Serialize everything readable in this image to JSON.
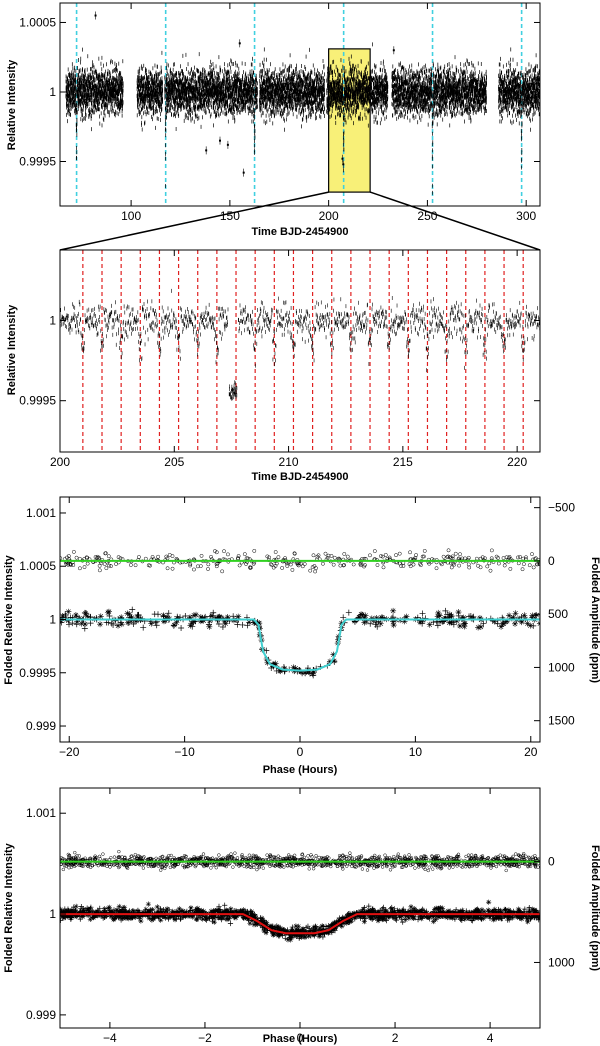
{
  "figure": {
    "panel_a": {
      "xlabel": "Time BJD-2454900",
      "ylabel": "Relative Intensity"
    },
    "panel_b": {
      "xlabel": "Time BJD-2454900",
      "ylabel": "Relative Intensity"
    },
    "panel_c": {
      "xlabel": "Phase (Hours)",
      "ylabel": "Folded Relative Intensity",
      "ylabel_right": "Folded Amplitude (ppm)"
    },
    "panel_d": {
      "xlabel": "Phase (Hours)",
      "ylabel": "Folded Relative Intensity",
      "ylabel_right": "Folded Amplitude (ppm)"
    }
  },
  "colors": {
    "data_points": "#000000",
    "transit_markers_a": "#40d0e0",
    "transit_markers_b": "#e02020",
    "zoom_box": "#f8f078",
    "fit_c": "#40d0d0",
    "fit_d": "#e01010",
    "residual_fit": "#30d020"
  },
  "chart_data": [
    {
      "panel": "a",
      "type": "scatter",
      "xlabel": "Time BJD-2454900",
      "ylabel": "Relative Intensity",
      "xlim": [
        64,
        307
      ],
      "ylim": [
        0.99918,
        1.00064
      ],
      "xticks": [
        100,
        150,
        200,
        250,
        300
      ],
      "xtick_labels": [
        "100",
        "150",
        "200",
        "250",
        "300"
      ],
      "yticks": [
        0.9995,
        1,
        1.0005
      ],
      "ytick_labels": [
        "0.9995",
        "1",
        "1.0005"
      ],
      "baseline": 1.0,
      "scatter_sigma": 8e-05,
      "data_segments": [
        [
          67,
          96
        ],
        [
          103,
          116
        ],
        [
          117,
          164
        ],
        [
          165,
          198
        ],
        [
          199,
          230
        ],
        [
          232,
          280
        ],
        [
          286,
          307
        ]
      ],
      "transit_depth": 0.00045,
      "transit_times": [
        72.4,
        117.5,
        162.5,
        207.6,
        252.6,
        297.7
      ],
      "zoom_region": [
        200,
        221
      ],
      "outliers": [
        {
          "x": 82,
          "y": 1.00055
        },
        {
          "x": 138,
          "y": 0.99958
        },
        {
          "x": 145,
          "y": 0.99965
        },
        {
          "x": 149,
          "y": 0.99962
        },
        {
          "x": 155,
          "y": 1.00035
        },
        {
          "x": 157,
          "y": 0.99942
        },
        {
          "x": 233,
          "y": 1.0003
        },
        {
          "x": 207,
          "y": 0.99952
        },
        {
          "x": 207.4,
          "y": 0.99948
        }
      ],
      "grid": false
    },
    {
      "panel": "b",
      "type": "scatter",
      "xlabel": "Time BJD-2454900",
      "ylabel": "Relative Intensity",
      "xlim": [
        200,
        221
      ],
      "ylim": [
        0.99918,
        1.00044
      ],
      "xticks": [
        200,
        205,
        210,
        215,
        220
      ],
      "xtick_labels": [
        "200",
        "205",
        "210",
        "215",
        "220"
      ],
      "yticks": [
        0.9995,
        1
      ],
      "ytick_labels": [
        "0.9995",
        "1"
      ],
      "baseline": 1.0,
      "scatter_sigma": 7e-05,
      "transit_period": 0.8376,
      "transit_first": 201.0,
      "dip_depth": 0.00012,
      "low_cluster": {
        "x": [
          207.4,
          207.75
        ],
        "y_center": 0.99955,
        "y_spread": 5e-05
      },
      "grid": false
    },
    {
      "panel": "c",
      "type": "scatter",
      "xlabel": "Phase (Hours)",
      "ylabel": "Folded Relative Intensity",
      "ylabel_right": "Folded Amplitude (ppm)",
      "xlim": [
        -20.8,
        20.8
      ],
      "ylim": [
        0.99885,
        1.00115
      ],
      "xticks": [
        -20,
        -10,
        0,
        10,
        20
      ],
      "xtick_labels": [
        "−20",
        "−10",
        "0",
        "10",
        "20"
      ],
      "yticks": [
        0.999,
        0.9995,
        1,
        1.0005,
        1.001
      ],
      "ytick_labels": [
        "0.999",
        "0.9995",
        "1",
        "1.0005",
        "1.001"
      ],
      "right_ticks_ppm": [
        -500,
        0,
        500,
        1000,
        1500
      ],
      "right_tick_labels": [
        "−500",
        "0",
        "500",
        "1000",
        "1500"
      ],
      "residual_offset": 1.00055,
      "transit_model": {
        "baseline": 1.0,
        "depth": 0.00048,
        "t1": 3.6,
        "t2": 3.1
      },
      "fit_curve_points": [
        [
          -20.8,
          1.0
        ],
        [
          -4.0,
          1.0
        ],
        [
          -3.6,
          0.99995
        ],
        [
          -3.2,
          0.9997
        ],
        [
          -2.6,
          0.99958
        ],
        [
          -1.5,
          0.99953
        ],
        [
          0,
          0.99952
        ],
        [
          1.5,
          0.99953
        ],
        [
          2.6,
          0.99958
        ],
        [
          3.2,
          0.9997
        ],
        [
          3.6,
          0.99995
        ],
        [
          4.0,
          1.0
        ],
        [
          20.8,
          1.0
        ]
      ],
      "scatter_sigma": 6e-05,
      "grid": false
    },
    {
      "panel": "d",
      "type": "scatter",
      "xlabel": "Phase (Hours)",
      "ylabel": "Folded Relative Intensity",
      "ylabel_right": "Folded Amplitude (ppm)",
      "xlim": [
        -5.05,
        5.05
      ],
      "ylim": [
        0.99887,
        1.00125
      ],
      "xticks": [
        -4,
        -2,
        0,
        2,
        4
      ],
      "xtick_labels": [
        "−4",
        "−2",
        "0",
        "2",
        "4"
      ],
      "yticks": [
        0.999,
        1,
        1.001
      ],
      "ytick_labels": [
        "0.999",
        "1",
        "1.001"
      ],
      "right_ticks_ppm": [
        0,
        1000
      ],
      "right_tick_labels": [
        "0",
        "1000"
      ],
      "residual_offset": 1.00052,
      "transit_model": {
        "baseline": 1.0,
        "depth": 0.00019,
        "t_edge": 1.1,
        "t_flat": 0.55
      },
      "fit_curve_points": [
        [
          -5.05,
          1.0
        ],
        [
          -1.2,
          1.0
        ],
        [
          -0.9,
          0.99993
        ],
        [
          -0.6,
          0.99984
        ],
        [
          -0.3,
          0.99981
        ],
        [
          0,
          0.99981
        ],
        [
          0.3,
          0.99981
        ],
        [
          0.6,
          0.99984
        ],
        [
          0.9,
          0.99993
        ],
        [
          1.2,
          1.0
        ],
        [
          5.05,
          1.0
        ]
      ],
      "scatter_sigma": 5e-05,
      "grid": false
    }
  ]
}
